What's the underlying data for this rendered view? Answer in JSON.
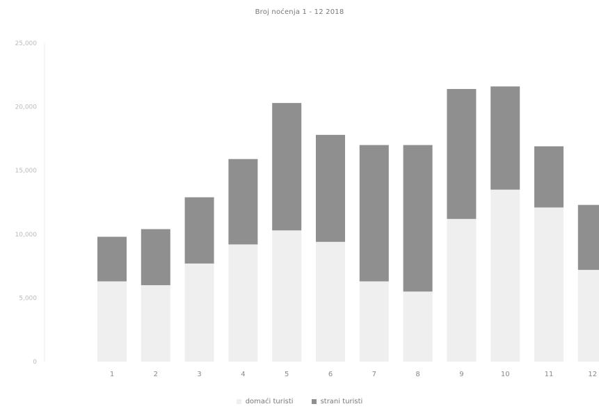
{
  "chart_data": {
    "type": "bar",
    "stacked": true,
    "title": "Broj noćenja 1 - 12 2018",
    "xlabel": "",
    "ylabel": "",
    "categories": [
      "1",
      "2",
      "3",
      "4",
      "5",
      "6",
      "7",
      "8",
      "9",
      "10",
      "11",
      "12"
    ],
    "yticks": [
      "0",
      "5,000",
      "10,000",
      "15,000",
      "20,000",
      "25,000"
    ],
    "ylim": [
      0,
      25000
    ],
    "grid": false,
    "legend_position": "bottom",
    "series": [
      {
        "name": "domaći turisti",
        "color": "#efefef",
        "values": [
          6300,
          6000,
          7700,
          9200,
          10300,
          9400,
          6300,
          5500,
          11200,
          13500,
          12100,
          7200
        ]
      },
      {
        "name": "strani turisti",
        "color": "#8f8f8f",
        "values": [
          3500,
          4400,
          5200,
          6700,
          10000,
          8400,
          10700,
          11500,
          10200,
          8100,
          4800,
          5100
        ]
      }
    ]
  }
}
